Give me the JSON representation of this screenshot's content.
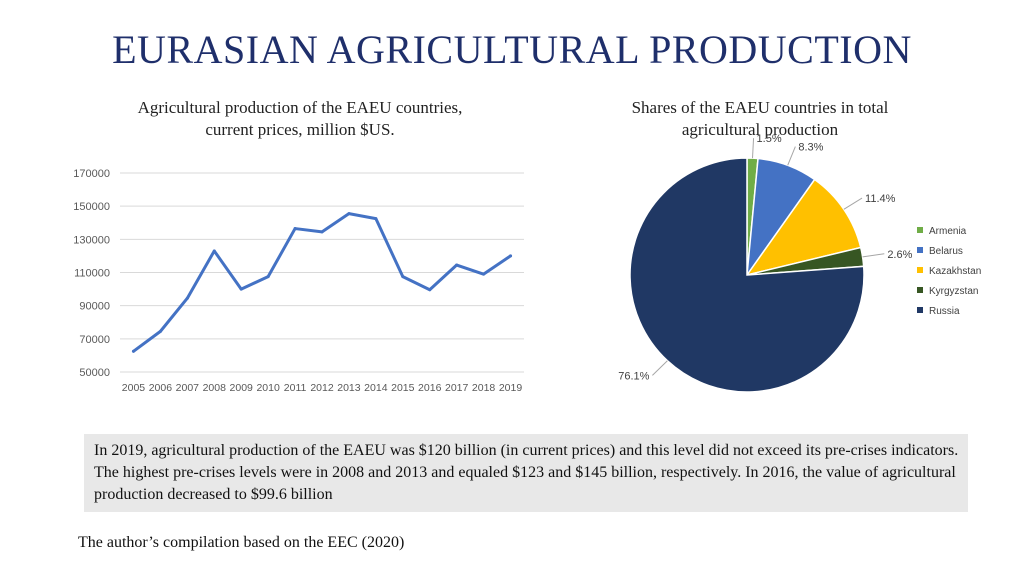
{
  "slide": {
    "title": "EURASIAN AGRICULTURAL PRODUCTION",
    "summary": "In 2019, agricultural production of the EAEU was $120 billion (in current prices) and this level did not exceed its pre-crises indicators. The highest pre-crises levels were in 2008 and 2013 and equaled $123 and $145 billion, respectively. In 2016, the value of agricultural production decreased to $99.6 billion",
    "source": "The author’s compilation based on the EEC (2020)"
  },
  "chart_data": [
    {
      "type": "line",
      "title": "Agricultural production of the EAEU countries, current prices, million $US.",
      "title_lines": [
        "Agricultural production of the EAEU countries,",
        "current prices, million $US."
      ],
      "x": [
        "2005",
        "2006",
        "2007",
        "2008",
        "2009",
        "2010",
        "2011",
        "2012",
        "2013",
        "2014",
        "2015",
        "2016",
        "2017",
        "2018",
        "2019"
      ],
      "series": [
        {
          "values": [
            62500,
            74500,
            94500,
            123000,
            100000,
            107500,
            136500,
            134500,
            145500,
            142500,
            107500,
            99600,
            114500,
            109000,
            120000
          ],
          "color": "#4472c4"
        }
      ],
      "ylim": [
        50000,
        170000
      ],
      "yticks": [
        50000,
        70000,
        90000,
        110000,
        130000,
        150000,
        170000
      ],
      "grid": true,
      "xlabel": "",
      "ylabel": ""
    },
    {
      "type": "pie",
      "title": "Shares of the EAEU countries in total agricultural production",
      "title_lines": [
        "Shares of the EAEU countries in total",
        "agricultural production"
      ],
      "slices": [
        {
          "label": "Armenia",
          "value": 1.5,
          "display": "1.5%",
          "color": "#70ad47"
        },
        {
          "label": "Belarus",
          "value": 8.3,
          "display": "8.3%",
          "color": "#4472c4"
        },
        {
          "label": "Kazakhstan",
          "value": 11.4,
          "display": "11.4%",
          "color": "#ffc000"
        },
        {
          "label": "Kyrgyzstan",
          "value": 2.6,
          "display": "2.6%",
          "color": "#375623"
        },
        {
          "label": "Russia",
          "value": 76.1,
          "display": "76.1%",
          "color": "#203864"
        }
      ],
      "legend_position": "right"
    }
  ]
}
